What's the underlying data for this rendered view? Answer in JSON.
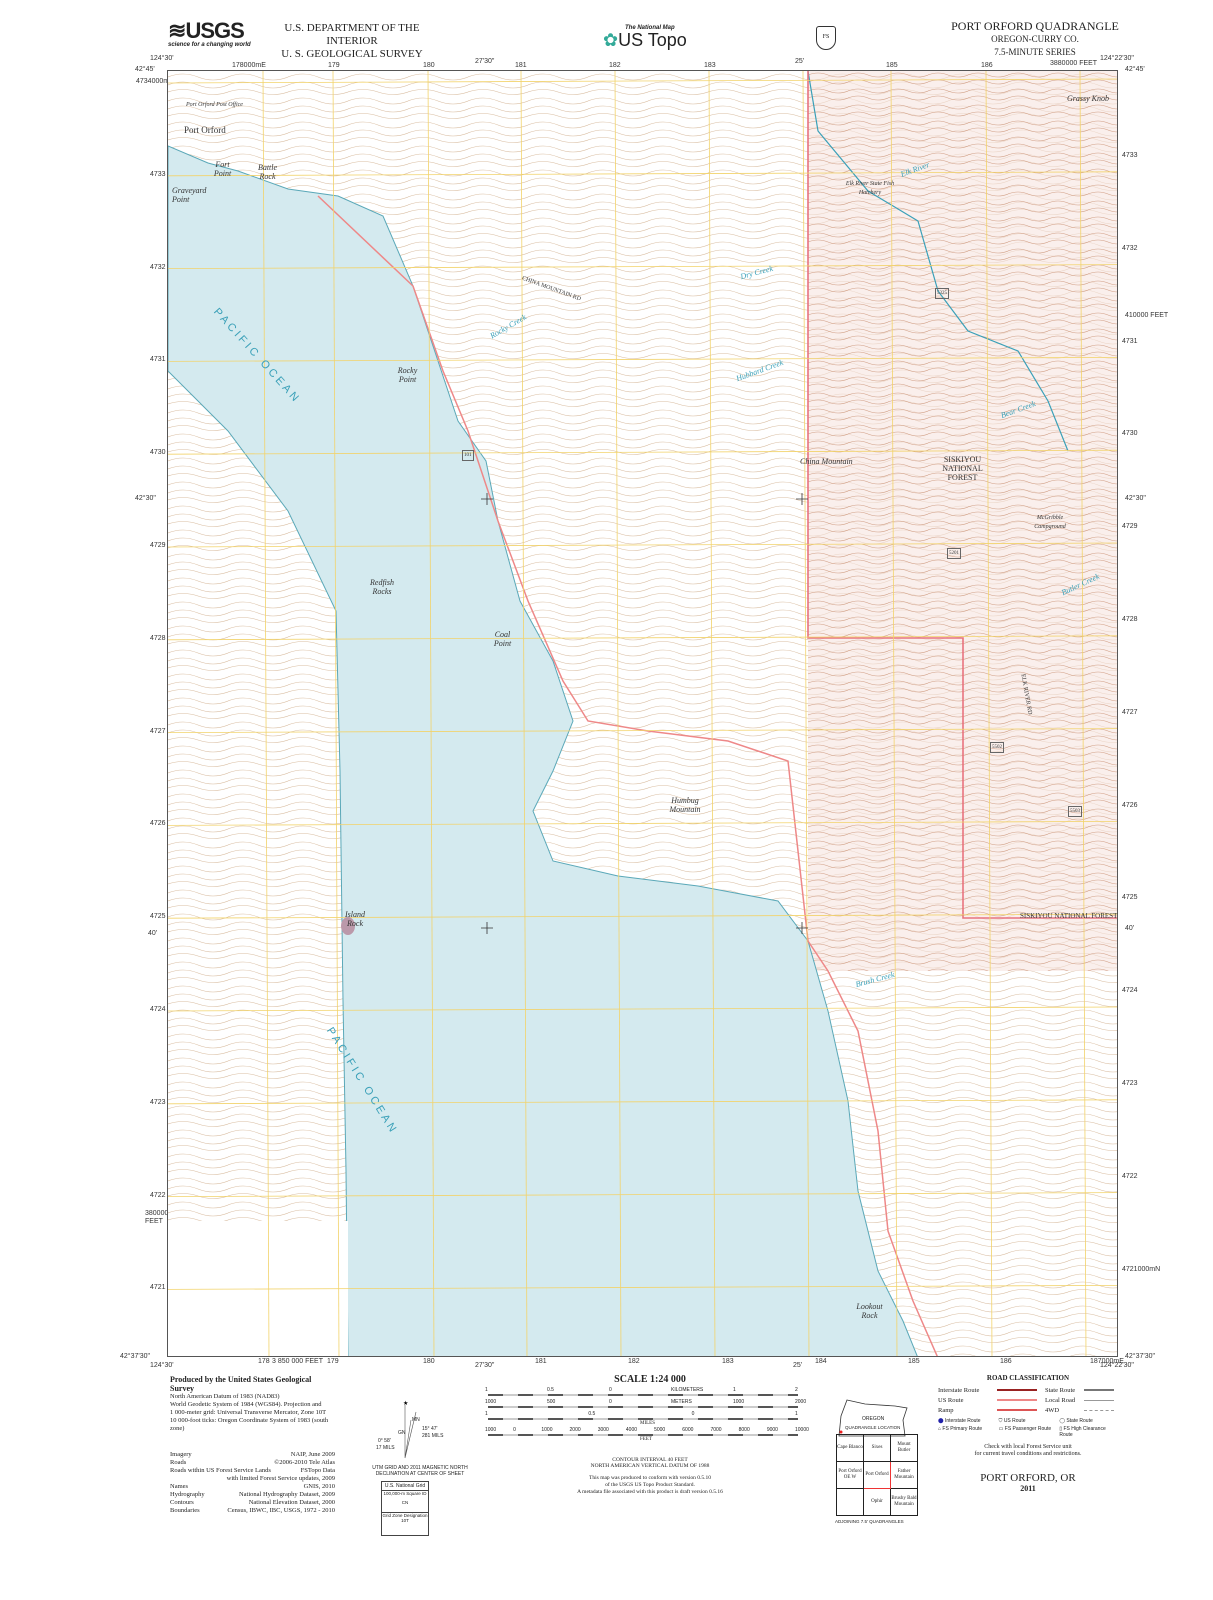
{
  "header": {
    "usgs_logo": "USGS",
    "usgs_tagline": "science for a changing world",
    "dept": "U.S. DEPARTMENT OF THE INTERIOR",
    "survey": "U. S. GEOLOGICAL SURVEY",
    "national_map": "The National Map",
    "us_topo": "US Topo",
    "title": "PORT ORFORD QUADRANGLE",
    "state_county": "OREGON-CURRY CO.",
    "series": "7.5-MINUTE SERIES"
  },
  "collar": {
    "top_left_lon": "124°30'",
    "top_mid_lon": "27'30\"",
    "top_25": "25'",
    "top_right_lon": "124°22'30\"",
    "lat_top": "42°45'",
    "lat_mid": "42°30\"",
    "lat_40": "40'",
    "lat_bottom": "42°37'30\"",
    "top_utm": [
      "178000mE",
      "179",
      "180",
      "181",
      "182",
      "183",
      "185",
      "186"
    ],
    "top_feet": "3880000 FEET",
    "left_utm": [
      "4734000mN",
      "4733",
      "4732",
      "4731",
      "4730",
      "4729",
      "4728",
      "4727",
      "4726",
      "4725",
      "4724",
      "4723",
      "4722",
      "4721"
    ],
    "right_utm": [
      "4733",
      "4732",
      "4731",
      "4730",
      "4729",
      "4728",
      "4727",
      "4726",
      "4725",
      "4724",
      "4723",
      "4722",
      "4721000mN"
    ],
    "right_feet": "410000 FEET",
    "left_feet": "380000 FEET",
    "bottom_utm": [
      "178",
      "179",
      "180",
      "181",
      "182",
      "183",
      "184",
      "185",
      "186",
      "187000mE"
    ],
    "bottom_feet": "3 850 000 FEET",
    "bottom_left_lon": "124°30'",
    "bottom_mid_lon": "27'30\"",
    "bottom_25": "25'",
    "bottom_right_lon": "124°22'30\""
  },
  "map": {
    "colors": {
      "ocean": "#d4eaef",
      "contour": "#c9a27a",
      "grid": "#f2d36b",
      "forest_boundary": "#e8737f",
      "water": "#3aa0b8",
      "road": "#888888"
    },
    "places": [
      "Port Orford",
      "Port Orford Post Office",
      "Fort Point",
      "Battle Rock",
      "Graveyard Point",
      "Rocky Point",
      "Redfish Rocks",
      "Coal Point",
      "Humbug Mountain",
      "Island Rock",
      "Lookout Rock",
      "China Mountain",
      "SISKIYOU NATIONAL FOREST",
      "McGribble Campground",
      "Elk River State Fish Hatchery",
      "Grassy Knob",
      "SISKIYOU NATIONAL FOREST"
    ],
    "water": [
      "Rocky Creek",
      "Hubbard Creek",
      "Brush Creek",
      "Bear Creek",
      "Elk River",
      "Dry Creek",
      "Butler Creek"
    ],
    "roads": [
      "CHINA MOUNTAIN RD",
      "ELK RIVER RD"
    ],
    "ocean_label": "PACIFIC OCEAN",
    "routes": [
      "101",
      "5325",
      "5201",
      "5502",
      "5503"
    ]
  },
  "footer": {
    "produced_by": "Produced by the United States Geological Survey",
    "datum_lines": [
      "North American Datum of 1983 (NAD83)",
      "World Geodetic System of 1984 (WGS84). Projection and",
      "1 000-meter grid: Universal Transverse Mercator, Zone 10T",
      "10 000-foot ticks: Oregon Coordinate System of 1983 (south zone)"
    ],
    "credits": [
      [
        "Imagery",
        "NAIP, June 2009"
      ],
      [
        "Roads",
        "©2006-2010 Tele Atlas"
      ],
      [
        "Roads within US Forest Service Lands",
        "FSTopo Data"
      ],
      [
        "",
        "with limited Forest Service updates, 2009"
      ],
      [
        "Names",
        "GNIS, 2010"
      ],
      [
        "Hydrography",
        "National Hydrography Dataset, 2009"
      ],
      [
        "Contours",
        "National Elevation Dataset, 2000"
      ],
      [
        "Boundaries",
        "Census, IBWC, IBC, USGS, 1972 - 2010"
      ]
    ],
    "declination": {
      "mn": "MN",
      "gn": "GN",
      "mn_angle": "15° 47'",
      "mn_mils": "281 MILS",
      "gn_angle": "0° 58'",
      "gn_mils": "17 MILS",
      "caption": "UTM GRID AND 2011 MAGNETIC NORTH DECLINATION AT CENTER OF SHEET"
    },
    "grid_box": {
      "title": "U.S. National Grid",
      "square": "100,000-m Square ID",
      "id": "CN",
      "zone_label": "Grid Zone Designation",
      "zone": "10T"
    },
    "scale": {
      "title": "SCALE 1:24 000",
      "km": [
        "1",
        "0.5",
        "0",
        "KILOMETERS",
        "1",
        "2"
      ],
      "m": [
        "1000",
        "500",
        "0",
        "METERS",
        "1000",
        "2000"
      ],
      "mi": [
        "1",
        "0.5",
        "0",
        "1"
      ],
      "mi_label": "MILES",
      "ft": [
        "1000",
        "0",
        "1000",
        "2000",
        "3000",
        "4000",
        "5000",
        "6000",
        "7000",
        "8000",
        "9000",
        "10000"
      ],
      "ft_label": "FEET"
    },
    "contour": "CONTOUR INTERVAL 40 FEET",
    "vdatum": "NORTH AMERICAN VERTICAL DATUM OF 1988",
    "standard": [
      "This map was produced to conform with version 0.5.10",
      "of the USGS US Topo Product Standard.",
      "A metadata file associated with this product is draft version 0.5.16"
    ],
    "oregon": "OREGON",
    "quad_location": "QUADRANGLE LOCATION",
    "adjoining": [
      [
        "Cape Blanco",
        "Sixes",
        "Mount Butler"
      ],
      [
        "Port Orford OE W",
        "Port Orford",
        "Father Mountain"
      ],
      [
        "",
        "Ophir",
        "Brushy Bald Mountain"
      ]
    ],
    "adjoining_label": "ADJOINING 7.5' QUADRANGLES",
    "road_class": {
      "title": "ROAD CLASSIFICATION",
      "items": [
        "Interstate Route",
        "US Route",
        "Ramp",
        "State Route",
        "Local Road",
        "4WD"
      ],
      "shields": [
        "Interstate Route",
        "US Route",
        "State Route",
        "FS Primary Route",
        "FS Passenger Route",
        "FS High Clearance Route"
      ],
      "note": [
        "Check with local Forest Service unit",
        "for current travel conditions and restrictions."
      ]
    },
    "name": "PORT ORFORD, OR",
    "year": "2011"
  }
}
